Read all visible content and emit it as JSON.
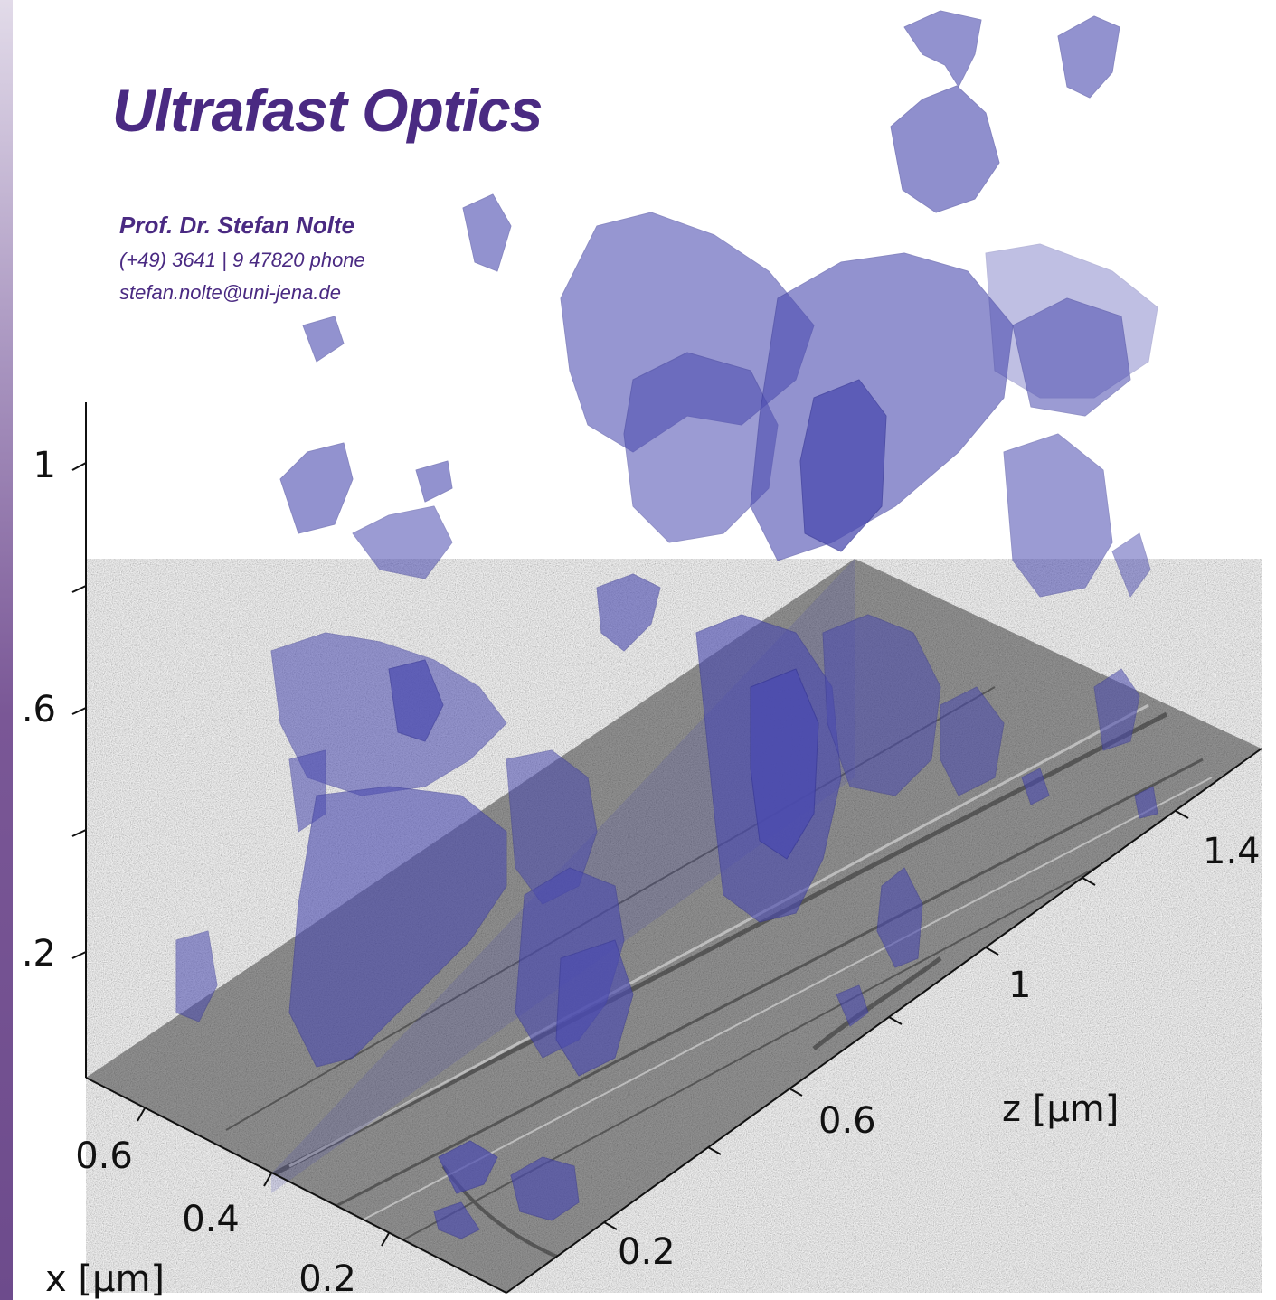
{
  "header": {
    "title": "Ultrafast Optics",
    "person_name": "Prof. Dr. Stefan Nolte",
    "phone": "(+49) 3641 | 9 47820 phone",
    "email": "stefan.nolte@uni-jena.de"
  },
  "axes": {
    "y_tick_labels": [
      "1",
      ".6",
      ".2"
    ],
    "x_tick_labels": [
      "0.6",
      "0.4",
      "0.2"
    ],
    "x_title": "x [µm]",
    "z_tick_labels": [
      "1.4",
      "1",
      "0.6",
      "0.2"
    ],
    "z_title": "z [µm]"
  },
  "colors": {
    "accent": "#4a2a82",
    "side_bar": "#6d4b8c",
    "isosurface": "#5a5ab4",
    "plane": "#8a8a8a"
  }
}
